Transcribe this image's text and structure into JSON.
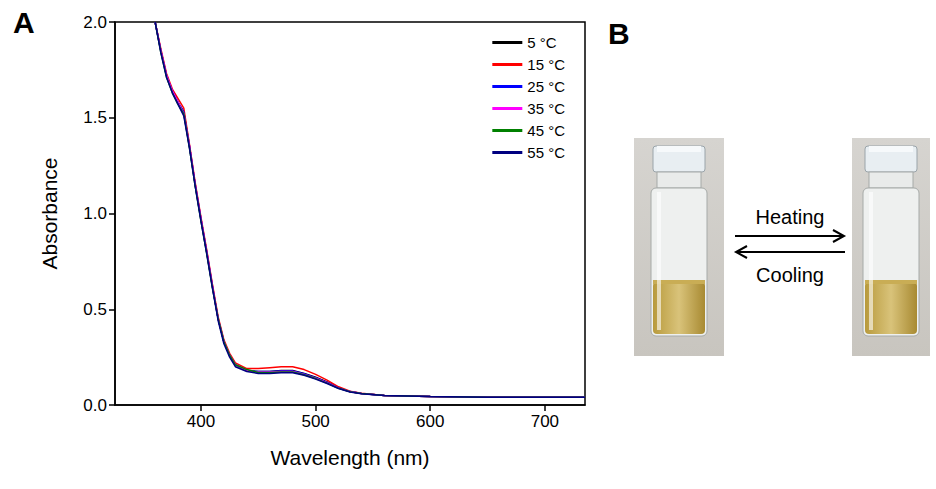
{
  "chart_data": {
    "type": "line",
    "panel_label": "A",
    "x_label": "Wavelength (nm)",
    "y_label": "Absorbance",
    "x": [
      360,
      365,
      370,
      375,
      380,
      385,
      390,
      395,
      400,
      405,
      410,
      415,
      420,
      425,
      430,
      440,
      450,
      460,
      470,
      480,
      490,
      500,
      510,
      520,
      530,
      540,
      560,
      600,
      650,
      700,
      735
    ],
    "series": [
      {
        "name": "5 °C",
        "color": "#000000",
        "values": [
          2.0,
          1.85,
          1.72,
          1.64,
          1.58,
          1.53,
          1.35,
          1.15,
          0.97,
          0.8,
          0.62,
          0.45,
          0.33,
          0.26,
          0.21,
          0.18,
          0.175,
          0.175,
          0.18,
          0.18,
          0.165,
          0.145,
          0.12,
          0.09,
          0.07,
          0.06,
          0.05,
          0.045,
          0.04,
          0.04,
          0.04
        ]
      },
      {
        "name": "15 °C",
        "color": "#ff0000",
        "values": [
          2.0,
          1.86,
          1.73,
          1.65,
          1.6,
          1.55,
          1.36,
          1.16,
          0.98,
          0.81,
          0.63,
          0.46,
          0.34,
          0.27,
          0.22,
          0.19,
          0.19,
          0.195,
          0.2,
          0.2,
          0.185,
          0.16,
          0.13,
          0.095,
          0.072,
          0.062,
          0.05,
          0.045,
          0.04,
          0.04,
          0.04
        ]
      },
      {
        "name": "25 °C",
        "color": "#0000ff",
        "values": [
          2.0,
          1.85,
          1.72,
          1.64,
          1.58,
          1.53,
          1.35,
          1.15,
          0.97,
          0.8,
          0.62,
          0.45,
          0.33,
          0.26,
          0.21,
          0.18,
          0.175,
          0.175,
          0.178,
          0.178,
          0.163,
          0.143,
          0.118,
          0.089,
          0.07,
          0.06,
          0.05,
          0.045,
          0.04,
          0.04,
          0.04
        ]
      },
      {
        "name": "35 °C",
        "color": "#ff00ff",
        "values": [
          2.0,
          1.85,
          1.72,
          1.64,
          1.58,
          1.52,
          1.35,
          1.15,
          0.97,
          0.8,
          0.62,
          0.45,
          0.33,
          0.26,
          0.21,
          0.18,
          0.172,
          0.172,
          0.175,
          0.175,
          0.16,
          0.14,
          0.116,
          0.088,
          0.07,
          0.06,
          0.05,
          0.045,
          0.04,
          0.04,
          0.04
        ]
      },
      {
        "name": "45 °C",
        "color": "#008000",
        "values": [
          2.0,
          1.84,
          1.71,
          1.63,
          1.57,
          1.52,
          1.34,
          1.14,
          0.96,
          0.79,
          0.61,
          0.45,
          0.33,
          0.26,
          0.21,
          0.185,
          0.17,
          0.17,
          0.172,
          0.172,
          0.158,
          0.138,
          0.114,
          0.087,
          0.069,
          0.06,
          0.05,
          0.045,
          0.04,
          0.04,
          0.04
        ]
      },
      {
        "name": "55 °C",
        "color": "#000080",
        "values": [
          2.0,
          1.84,
          1.71,
          1.63,
          1.57,
          1.51,
          1.34,
          1.14,
          0.96,
          0.79,
          0.61,
          0.44,
          0.32,
          0.25,
          0.2,
          0.175,
          0.165,
          0.165,
          0.168,
          0.168,
          0.155,
          0.135,
          0.112,
          0.086,
          0.068,
          0.059,
          0.05,
          0.045,
          0.04,
          0.04,
          0.04
        ]
      }
    ],
    "xlim": [
      325,
      735
    ],
    "xticks": [
      400,
      500,
      600,
      700
    ],
    "ylim": [
      0,
      2
    ],
    "yticks": [
      {
        "value": 0,
        "label": "0.0"
      },
      {
        "value": 0.5,
        "label": "0.5"
      },
      {
        "value": 1,
        "label": "1.0"
      },
      {
        "value": 1.5,
        "label": "1.5"
      },
      {
        "value": 2,
        "label": "2.0"
      }
    ],
    "legend": "upper right",
    "grid": false
  },
  "image_panel": {
    "panel_label": "B",
    "forward_arrow": "Heating",
    "backward_arrow": "Cooling"
  }
}
